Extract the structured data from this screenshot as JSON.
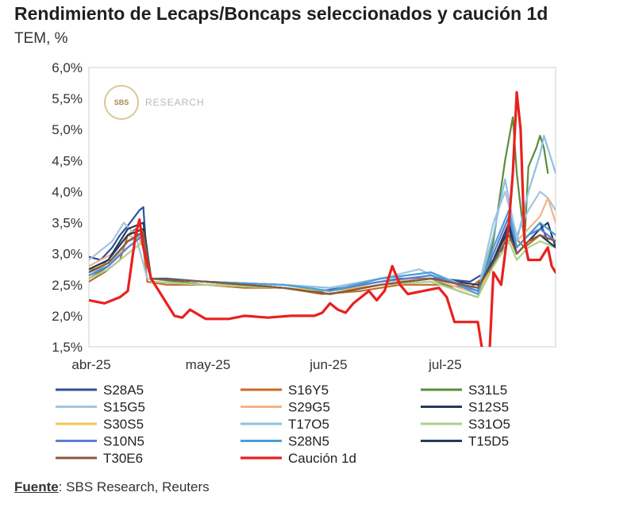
{
  "title": "Rendimiento de Lecaps/Boncaps seleccionados y caución 1d",
  "subtitle": "TEM, %",
  "source": {
    "label": "Fuente",
    "text": ": SBS Research, Reuters"
  },
  "watermark": {
    "logo": "SBS",
    "text": "RESEARCH"
  },
  "chart_data": {
    "type": "line",
    "ylim": [
      1.5,
      6.0
    ],
    "xlim": [
      0,
      120
    ],
    "yticks": [
      {
        "v": 6.0,
        "label": "6,0%"
      },
      {
        "v": 5.5,
        "label": "5,5%"
      },
      {
        "v": 5.0,
        "label": "5,0%"
      },
      {
        "v": 4.5,
        "label": "4,5%"
      },
      {
        "v": 4.0,
        "label": "4,0%"
      },
      {
        "v": 3.5,
        "label": "3,5%"
      },
      {
        "v": 3.0,
        "label": "3,0%"
      },
      {
        "v": 2.5,
        "label": "2,5%"
      },
      {
        "v": 2.0,
        "label": "2,0%"
      },
      {
        "v": 1.5,
        "label": "1,5%"
      }
    ],
    "xticks": [
      {
        "v": 0,
        "label": "abr-25"
      },
      {
        "v": 30,
        "label": "may-25"
      },
      {
        "v": 61,
        "label": "jun-25"
      },
      {
        "v": 91,
        "label": "jul-25"
      }
    ],
    "grid": false,
    "legend_position": "bottom",
    "series": [
      {
        "name": "S28A5",
        "color": "#2f4f9e",
        "points": [
          [
            0,
            2.95
          ],
          [
            3,
            2.9
          ],
          [
            6,
            3.1
          ],
          [
            8,
            3.3
          ],
          [
            10,
            3.45
          ],
          [
            13,
            3.7
          ],
          [
            14,
            3.75
          ],
          [
            15,
            2.8
          ],
          [
            16,
            2.6
          ],
          [
            20,
            2.6
          ],
          [
            30,
            2.55
          ],
          [
            40,
            2.5
          ],
          [
            50,
            2.45
          ],
          [
            60,
            2.4
          ],
          [
            70,
            2.5
          ],
          [
            80,
            2.6
          ],
          [
            90,
            2.6
          ],
          [
            98,
            2.55
          ],
          [
            102,
            2.7
          ],
          [
            106,
            3.0
          ],
          [
            108,
            3.5
          ],
          [
            110,
            3.1
          ],
          [
            113,
            3.3
          ],
          [
            116,
            3.5
          ],
          [
            118,
            3.2
          ],
          [
            120,
            3.1
          ]
        ]
      },
      {
        "name": "S16Y5",
        "color": "#c56a28",
        "points": [
          [
            0,
            2.55
          ],
          [
            4,
            2.7
          ],
          [
            8,
            2.9
          ],
          [
            10,
            3.3
          ],
          [
            12,
            3.4
          ],
          [
            14,
            3.1
          ],
          [
            15,
            2.55
          ],
          [
            20,
            2.5
          ],
          [
            30,
            2.5
          ],
          [
            40,
            2.45
          ],
          [
            50,
            2.45
          ],
          [
            60,
            2.35
          ],
          [
            70,
            2.4
          ],
          [
            80,
            2.5
          ],
          [
            90,
            2.5
          ],
          [
            98,
            2.45
          ],
          [
            103,
            2.7
          ],
          [
            107,
            3.1
          ],
          [
            109,
            3.3
          ],
          [
            112,
            3.1
          ],
          [
            116,
            3.3
          ],
          [
            120,
            3.2
          ]
        ]
      },
      {
        "name": "S31L5",
        "color": "#5b8c3a",
        "points": [
          [
            0,
            2.6
          ],
          [
            5,
            2.8
          ],
          [
            10,
            3.2
          ],
          [
            14,
            3.3
          ],
          [
            16,
            2.6
          ],
          [
            30,
            2.5
          ],
          [
            50,
            2.45
          ],
          [
            62,
            2.35
          ],
          [
            75,
            2.5
          ],
          [
            88,
            2.6
          ],
          [
            95,
            2.4
          ],
          [
            100,
            2.3
          ],
          [
            104,
            3.2
          ],
          [
            107,
            4.5
          ],
          [
            109,
            5.2
          ],
          [
            110,
            4.3
          ],
          [
            112,
            3.2
          ],
          [
            113,
            4.4
          ],
          [
            115,
            4.7
          ],
          [
            116,
            4.9
          ],
          [
            117,
            4.7
          ],
          [
            118,
            4.3
          ]
        ]
      },
      {
        "name": "S15G5",
        "color": "#a7c4de",
        "points": [
          [
            0,
            2.9
          ],
          [
            6,
            3.2
          ],
          [
            9,
            3.5
          ],
          [
            12,
            3.3
          ],
          [
            15,
            2.6
          ],
          [
            30,
            2.55
          ],
          [
            50,
            2.5
          ],
          [
            62,
            2.45
          ],
          [
            75,
            2.6
          ],
          [
            85,
            2.75
          ],
          [
            90,
            2.6
          ],
          [
            100,
            2.4
          ],
          [
            104,
            3.5
          ],
          [
            107,
            4.0
          ],
          [
            110,
            3.3
          ],
          [
            113,
            3.7
          ],
          [
            116,
            4.0
          ],
          [
            118,
            3.9
          ],
          [
            120,
            3.7
          ]
        ]
      },
      {
        "name": "S29G5",
        "color": "#f2b48a",
        "points": [
          [
            0,
            2.8
          ],
          [
            6,
            3.0
          ],
          [
            10,
            3.3
          ],
          [
            14,
            3.2
          ],
          [
            16,
            2.55
          ],
          [
            30,
            2.5
          ],
          [
            50,
            2.5
          ],
          [
            62,
            2.4
          ],
          [
            75,
            2.55
          ],
          [
            88,
            2.6
          ],
          [
            100,
            2.35
          ],
          [
            104,
            3.0
          ],
          [
            108,
            3.6
          ],
          [
            110,
            3.2
          ],
          [
            113,
            3.4
          ],
          [
            116,
            3.6
          ],
          [
            118,
            3.9
          ],
          [
            120,
            3.5
          ]
        ]
      },
      {
        "name": "S12S5",
        "color": "#243a5e",
        "points": [
          [
            0,
            2.7
          ],
          [
            5,
            2.9
          ],
          [
            10,
            3.4
          ],
          [
            14,
            3.5
          ],
          [
            16,
            2.6
          ],
          [
            30,
            2.55
          ],
          [
            50,
            2.45
          ],
          [
            62,
            2.35
          ],
          [
            75,
            2.5
          ],
          [
            88,
            2.6
          ],
          [
            100,
            2.5
          ],
          [
            104,
            2.9
          ],
          [
            108,
            3.5
          ],
          [
            110,
            3.0
          ],
          [
            113,
            3.2
          ],
          [
            116,
            3.4
          ],
          [
            118,
            3.5
          ],
          [
            120,
            3.1
          ]
        ]
      },
      {
        "name": "S30S5",
        "color": "#f2c94c",
        "points": [
          [
            0,
            2.75
          ],
          [
            5,
            2.85
          ],
          [
            10,
            3.1
          ],
          [
            14,
            3.3
          ],
          [
            16,
            2.55
          ],
          [
            30,
            2.5
          ],
          [
            50,
            2.45
          ],
          [
            62,
            2.4
          ],
          [
            75,
            2.5
          ],
          [
            88,
            2.55
          ],
          [
            100,
            2.3
          ],
          [
            104,
            2.9
          ],
          [
            108,
            3.3
          ],
          [
            110,
            3.0
          ],
          [
            113,
            3.2
          ],
          [
            116,
            3.3
          ],
          [
            120,
            3.2
          ]
        ]
      },
      {
        "name": "T17O5",
        "color": "#8fc1e3",
        "points": [
          [
            0,
            2.7
          ],
          [
            5,
            2.8
          ],
          [
            10,
            3.2
          ],
          [
            14,
            3.3
          ],
          [
            16,
            2.6
          ],
          [
            30,
            2.55
          ],
          [
            50,
            2.5
          ],
          [
            62,
            2.45
          ],
          [
            75,
            2.6
          ],
          [
            88,
            2.7
          ],
          [
            100,
            2.4
          ],
          [
            104,
            3.3
          ],
          [
            107,
            4.2
          ],
          [
            110,
            3.2
          ],
          [
            113,
            4.0
          ],
          [
            116,
            4.6
          ],
          [
            117,
            4.9
          ],
          [
            118,
            4.7
          ],
          [
            120,
            4.3
          ]
        ]
      },
      {
        "name": "S31O5",
        "color": "#a9d18e",
        "points": [
          [
            0,
            2.6
          ],
          [
            5,
            2.75
          ],
          [
            10,
            3.0
          ],
          [
            14,
            3.2
          ],
          [
            16,
            2.55
          ],
          [
            30,
            2.5
          ],
          [
            50,
            2.45
          ],
          [
            62,
            2.35
          ],
          [
            75,
            2.5
          ],
          [
            88,
            2.55
          ],
          [
            100,
            2.3
          ],
          [
            104,
            2.8
          ],
          [
            108,
            3.2
          ],
          [
            110,
            2.9
          ],
          [
            113,
            3.1
          ],
          [
            116,
            3.2
          ],
          [
            120,
            3.1
          ]
        ]
      },
      {
        "name": "S10N5",
        "color": "#5b7fd6",
        "points": [
          [
            0,
            2.65
          ],
          [
            5,
            2.8
          ],
          [
            10,
            3.1
          ],
          [
            14,
            3.3
          ],
          [
            16,
            2.6
          ],
          [
            30,
            2.55
          ],
          [
            50,
            2.5
          ],
          [
            62,
            2.4
          ],
          [
            75,
            2.55
          ],
          [
            88,
            2.65
          ],
          [
            100,
            2.4
          ],
          [
            104,
            3.0
          ],
          [
            108,
            3.6
          ],
          [
            110,
            3.1
          ],
          [
            113,
            3.3
          ],
          [
            116,
            3.4
          ],
          [
            120,
            3.2
          ]
        ]
      },
      {
        "name": "S28N5",
        "color": "#4a9fd8",
        "points": [
          [
            0,
            2.7
          ],
          [
            5,
            2.85
          ],
          [
            10,
            3.2
          ],
          [
            14,
            3.35
          ],
          [
            16,
            2.6
          ],
          [
            30,
            2.55
          ],
          [
            50,
            2.5
          ],
          [
            62,
            2.4
          ],
          [
            75,
            2.6
          ],
          [
            88,
            2.7
          ],
          [
            100,
            2.35
          ],
          [
            104,
            3.1
          ],
          [
            108,
            3.7
          ],
          [
            110,
            3.1
          ],
          [
            113,
            3.3
          ],
          [
            116,
            3.5
          ],
          [
            120,
            3.3
          ]
        ]
      },
      {
        "name": "T15D5",
        "color": "#1f3b5a",
        "points": [
          [
            0,
            2.75
          ],
          [
            5,
            2.9
          ],
          [
            10,
            3.3
          ],
          [
            14,
            3.4
          ],
          [
            16,
            2.6
          ],
          [
            30,
            2.55
          ],
          [
            50,
            2.45
          ],
          [
            62,
            2.35
          ],
          [
            75,
            2.5
          ],
          [
            88,
            2.6
          ],
          [
            100,
            2.45
          ],
          [
            104,
            2.9
          ],
          [
            108,
            3.4
          ],
          [
            110,
            3.0
          ],
          [
            113,
            3.2
          ],
          [
            116,
            3.3
          ],
          [
            120,
            3.1
          ]
        ]
      },
      {
        "name": "T30E6",
        "color": "#8a5a3c",
        "points": [
          [
            0,
            2.7
          ],
          [
            5,
            2.85
          ],
          [
            10,
            3.2
          ],
          [
            14,
            3.35
          ],
          [
            16,
            2.6
          ],
          [
            30,
            2.55
          ],
          [
            50,
            2.45
          ],
          [
            62,
            2.35
          ],
          [
            75,
            2.5
          ],
          [
            88,
            2.6
          ],
          [
            100,
            2.45
          ],
          [
            104,
            2.85
          ],
          [
            108,
            3.3
          ],
          [
            110,
            3.0
          ],
          [
            113,
            3.2
          ],
          [
            116,
            3.3
          ],
          [
            120,
            3.2
          ]
        ]
      },
      {
        "name": "Caución 1d",
        "color": "#e8211f",
        "width": 3.2,
        "points": [
          [
            0,
            2.25
          ],
          [
            4,
            2.2
          ],
          [
            8,
            2.3
          ],
          [
            10,
            2.4
          ],
          [
            12,
            3.3
          ],
          [
            13,
            3.55
          ],
          [
            14,
            3.1
          ],
          [
            16,
            2.6
          ],
          [
            18,
            2.4
          ],
          [
            22,
            2.0
          ],
          [
            24,
            1.97
          ],
          [
            26,
            2.1
          ],
          [
            30,
            1.95
          ],
          [
            36,
            1.95
          ],
          [
            40,
            2.0
          ],
          [
            46,
            1.97
          ],
          [
            52,
            2.0
          ],
          [
            58,
            2.0
          ],
          [
            60,
            2.05
          ],
          [
            62,
            2.2
          ],
          [
            64,
            2.1
          ],
          [
            66,
            2.05
          ],
          [
            68,
            2.2
          ],
          [
            70,
            2.3
          ],
          [
            72,
            2.4
          ],
          [
            74,
            2.25
          ],
          [
            76,
            2.4
          ],
          [
            78,
            2.8
          ],
          [
            80,
            2.5
          ],
          [
            82,
            2.35
          ],
          [
            86,
            2.4
          ],
          [
            90,
            2.45
          ],
          [
            92,
            2.3
          ],
          [
            94,
            1.9
          ],
          [
            96,
            1.9
          ],
          [
            100,
            1.9
          ],
          [
            101,
            1.5
          ],
          [
            103,
            1.4
          ],
          [
            104,
            2.7
          ],
          [
            106,
            2.5
          ],
          [
            108,
            3.5
          ],
          [
            109,
            4.3
          ],
          [
            110,
            5.6
          ],
          [
            111,
            5.0
          ],
          [
            112,
            3.2
          ],
          [
            113,
            2.9
          ],
          [
            116,
            2.9
          ],
          [
            118,
            3.1
          ],
          [
            119,
            2.8
          ],
          [
            120,
            2.7
          ]
        ]
      }
    ]
  }
}
